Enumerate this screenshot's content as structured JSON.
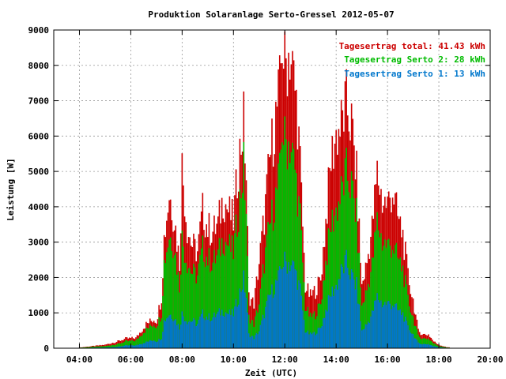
{
  "chart_data": {
    "type": "bar",
    "stacked": true,
    "title": "Produktion Solaranlage Serto-Gressel 2012-05-07",
    "xlabel": "Zeit (UTC)",
    "ylabel": "Leistung [W]",
    "x_unit": "hours UTC",
    "xlim": [
      3,
      20
    ],
    "ylim": [
      0,
      9000
    ],
    "grid": true,
    "legend_position": "top-right",
    "x_ticks": [
      "04:00",
      "06:00",
      "08:00",
      "10:00",
      "12:00",
      "14:00",
      "16:00",
      "18:00",
      "20:00"
    ],
    "y_ticks": [
      "0",
      "1000",
      "2000",
      "3000",
      "4000",
      "5000",
      "6000",
      "7000",
      "8000",
      "9000"
    ],
    "legend": [
      {
        "label": "Tagesertrag total: 41.43 kWh",
        "color": "#cc0000"
      },
      {
        "label": "Tagesertrag Serto 2: 28 kWh",
        "color": "#00bb00"
      },
      {
        "label": "Tagesertrag Serto 1: 13 kWh",
        "color": "#0077cc"
      }
    ],
    "series_colors": {
      "serto1": "#0077cc",
      "serto2": "#00bb00",
      "total": "#cc0000"
    },
    "profile": {
      "x": [
        4.0,
        4.5,
        5.0,
        5.5,
        5.8,
        6.2,
        6.6,
        6.9,
        7.0,
        7.2,
        7.3,
        7.5,
        7.7,
        7.9,
        8.0,
        8.2,
        8.4,
        8.6,
        8.8,
        9.0,
        9.2,
        9.4,
        9.6,
        9.8,
        10.0,
        10.2,
        10.4,
        10.5,
        10.6,
        10.8,
        11.0,
        11.2,
        11.4,
        11.6,
        11.8,
        11.9,
        12.0,
        12.2,
        12.4,
        12.5,
        12.6,
        12.8,
        13.0,
        13.2,
        13.4,
        13.6,
        13.8,
        14.0,
        14.2,
        14.4,
        14.6,
        14.8,
        15.0,
        15.2,
        15.4,
        15.6,
        15.8,
        16.0,
        16.2,
        16.4,
        16.6,
        16.8,
        17.0,
        17.2,
        17.4,
        17.6,
        17.8,
        18.0,
        18.3
      ],
      "total": [
        20,
        60,
        100,
        200,
        280,
        300,
        700,
        850,
        800,
        1500,
        3200,
        4500,
        3800,
        2500,
        5300,
        3500,
        3000,
        2800,
        4000,
        3500,
        3400,
        3600,
        4400,
        4000,
        3700,
        5400,
        6600,
        5000,
        1500,
        1300,
        2500,
        3800,
        5400,
        6500,
        7500,
        9000,
        8200,
        8700,
        7500,
        6800,
        5300,
        1800,
        1500,
        1700,
        2000,
        3700,
        5500,
        6200,
        6500,
        7100,
        6500,
        5000,
        1800,
        2500,
        3500,
        5100,
        4300,
        4200,
        4600,
        3800,
        3300,
        2100,
        1400,
        500,
        400,
        400,
        200,
        100,
        30
      ],
      "serto2": [
        15,
        40,
        60,
        120,
        200,
        220,
        550,
        700,
        650,
        1000,
        2500,
        3300,
        3000,
        1800,
        3200,
        2500,
        2200,
        2100,
        2900,
        2600,
        2500,
        2700,
        3200,
        3000,
        2800,
        4000,
        5300,
        4000,
        900,
        700,
        1300,
        2500,
        3500,
        4200,
        5000,
        6500,
        6000,
        6000,
        5200,
        4500,
        3800,
        1200,
        900,
        1000,
        1300,
        2500,
        3600,
        4000,
        4500,
        5100,
        4700,
        3800,
        1200,
        1700,
        2400,
        3700,
        3100,
        3000,
        3000,
        2600,
        2300,
        1400,
        900,
        350,
        280,
        280,
        140,
        70,
        20
      ],
      "serto1": [
        5,
        15,
        20,
        40,
        80,
        80,
        180,
        240,
        200,
        300,
        800,
        1000,
        900,
        600,
        1000,
        800,
        800,
        700,
        1000,
        900,
        900,
        1000,
        1100,
        1000,
        1000,
        1500,
        2000,
        1500,
        400,
        300,
        500,
        1000,
        1500,
        1800,
        2100,
        2500,
        2500,
        2500,
        2300,
        2000,
        1700,
        500,
        400,
        450,
        600,
        1100,
        1600,
        1800,
        2200,
        2500,
        2100,
        1800,
        500,
        700,
        1000,
        1500,
        1300,
        1300,
        1300,
        1100,
        1000,
        600,
        400,
        150,
        120,
        120,
        60,
        30,
        10
      ]
    },
    "bar_start": 4.0,
    "bar_end": 18.4,
    "bar_step": 0.05
  }
}
